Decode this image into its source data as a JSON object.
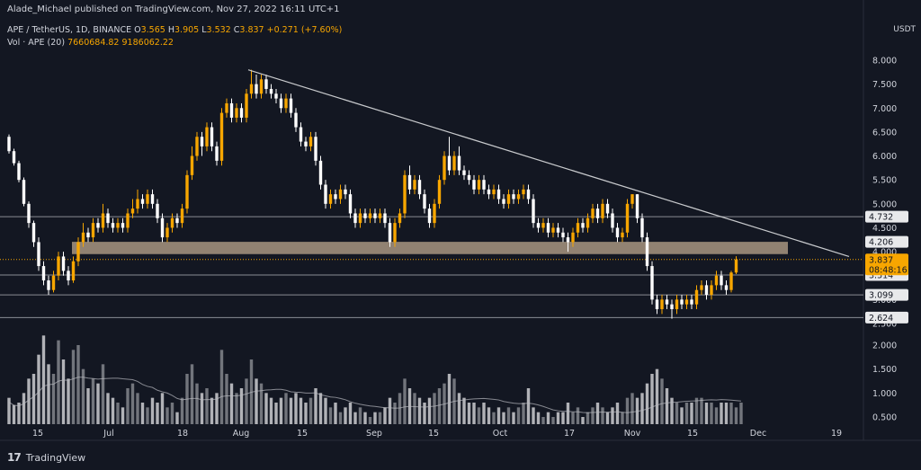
{
  "header": {
    "published": "Alade_Michael published on TradingView.com, Nov 27, 2022 16:11 UTC+1"
  },
  "legend": {
    "symbol": "APE / TetherUS, 1D, BINANCE",
    "open_label": "O",
    "open": "3.565",
    "high_label": "H",
    "high": "3.905",
    "low_label": "L",
    "low": "3.532",
    "close_label": "C",
    "close": "3.837",
    "change": "+0.271 (+7.60%)",
    "vol_label": "Vol · APE (20)",
    "vol_value": "7660684.82",
    "vol_ma": "9186062.22"
  },
  "currency": "USDT",
  "footer": {
    "brand": "TradingView"
  },
  "colors": {
    "background": "#131722",
    "up": "#f7a600",
    "down": "#ffffff",
    "zone": "#a89580",
    "trendline": "#c8cacd",
    "levels": "#8a8d94"
  },
  "chart_data": {
    "type": "candlestick",
    "price_axis": {
      "ticks": [
        "8.000",
        "7.500",
        "7.000",
        "6.500",
        "6.000",
        "5.500",
        "5.000",
        "4.500",
        "4.000",
        "3.500",
        "3.000",
        "2.500"
      ],
      "range": [
        2.5,
        8.0
      ]
    },
    "volume_axis": {
      "ticks": [
        "2.000",
        "1.500",
        "1.000",
        "0.500"
      ],
      "range": [
        0.3,
        2.4
      ]
    },
    "x_ticks": [
      "15",
      "Jul",
      "18",
      "Aug",
      "15",
      "Sep",
      "15",
      "Oct",
      "17",
      "Nov",
      "15",
      "Dec",
      "19"
    ],
    "levels": [
      {
        "label": "4.732",
        "value": 4.732
      },
      {
        "label": "3.514",
        "value": 3.514
      },
      {
        "label": "3.099",
        "value": 3.099
      },
      {
        "label": "2.624",
        "value": 2.624
      }
    ],
    "zone": {
      "label": "4.206",
      "low": 3.95,
      "high": 4.206
    },
    "last_price": {
      "label": "3.837",
      "value": 3.837,
      "countdown": "08:48:16"
    },
    "trendline": [
      {
        "x": "Aug 2",
        "y": 7.8
      },
      {
        "x": "Dec 16",
        "y": 3.9
      }
    ],
    "candles": [
      [
        6.4,
        6.1,
        6.45,
        6.05
      ],
      [
        6.1,
        5.85,
        6.15,
        5.8
      ],
      [
        5.85,
        5.5,
        5.9,
        5.45
      ],
      [
        5.5,
        5.0,
        5.55,
        4.95
      ],
      [
        5.0,
        4.6,
        5.05,
        4.5
      ],
      [
        4.6,
        4.2,
        4.65,
        4.1
      ],
      [
        4.2,
        3.7,
        4.3,
        3.6
      ],
      [
        3.7,
        3.4,
        3.8,
        3.3
      ],
      [
        3.4,
        3.2,
        3.5,
        3.1
      ],
      [
        3.2,
        3.5,
        3.6,
        3.15
      ],
      [
        3.5,
        3.9,
        4.0,
        3.4
      ],
      [
        3.9,
        3.6,
        4.0,
        3.5
      ],
      [
        3.6,
        3.4,
        3.7,
        3.3
      ],
      [
        3.4,
        3.8,
        3.9,
        3.35
      ],
      [
        3.8,
        4.2,
        4.3,
        3.7
      ],
      [
        4.2,
        4.4,
        4.6,
        4.1
      ],
      [
        4.4,
        4.3,
        4.5,
        4.2
      ],
      [
        4.3,
        4.6,
        4.7,
        4.2
      ],
      [
        4.6,
        4.5,
        4.7,
        4.4
      ],
      [
        4.5,
        4.8,
        5.0,
        4.4
      ],
      [
        4.8,
        4.6,
        4.9,
        4.5
      ],
      [
        4.6,
        4.5,
        4.7,
        4.4
      ],
      [
        4.5,
        4.6,
        4.7,
        4.4
      ],
      [
        4.6,
        4.5,
        4.7,
        4.4
      ],
      [
        4.5,
        4.8,
        4.9,
        4.4
      ],
      [
        4.8,
        4.9,
        5.1,
        4.7
      ],
      [
        4.9,
        5.1,
        5.3,
        4.8
      ],
      [
        5.1,
        5.0,
        5.2,
        4.9
      ],
      [
        5.0,
        5.2,
        5.3,
        4.9
      ],
      [
        5.2,
        5.0,
        5.3,
        4.9
      ],
      [
        5.0,
        4.7,
        5.1,
        4.6
      ],
      [
        4.7,
        4.3,
        4.8,
        4.2
      ],
      [
        4.3,
        4.5,
        4.6,
        4.2
      ],
      [
        4.5,
        4.7,
        4.8,
        4.4
      ],
      [
        4.7,
        4.6,
        4.8,
        4.5
      ],
      [
        4.6,
        4.9,
        5.0,
        4.5
      ],
      [
        4.9,
        5.6,
        5.7,
        4.8
      ],
      [
        5.6,
        6.0,
        6.2,
        5.5
      ],
      [
        6.0,
        6.4,
        6.5,
        5.9
      ],
      [
        6.4,
        6.2,
        6.5,
        6.0
      ],
      [
        6.2,
        6.6,
        6.7,
        6.1
      ],
      [
        6.6,
        6.2,
        6.7,
        6.1
      ],
      [
        6.2,
        5.9,
        6.3,
        5.8
      ],
      [
        5.9,
        6.9,
        7.0,
        5.8
      ],
      [
        6.9,
        7.1,
        7.2,
        6.8
      ],
      [
        7.1,
        6.8,
        7.2,
        6.7
      ],
      [
        6.8,
        7.0,
        7.1,
        6.7
      ],
      [
        7.0,
        6.8,
        7.1,
        6.7
      ],
      [
        6.8,
        7.3,
        7.4,
        6.7
      ],
      [
        7.3,
        7.5,
        7.8,
        7.2
      ],
      [
        7.5,
        7.3,
        7.7,
        7.2
      ],
      [
        7.3,
        7.6,
        7.7,
        7.2
      ],
      [
        7.6,
        7.4,
        7.7,
        7.3
      ],
      [
        7.4,
        7.3,
        7.5,
        7.2
      ],
      [
        7.3,
        7.2,
        7.4,
        7.1
      ],
      [
        7.2,
        7.0,
        7.3,
        6.9
      ],
      [
        7.0,
        7.2,
        7.3,
        6.9
      ],
      [
        7.2,
        6.9,
        7.3,
        6.8
      ],
      [
        6.9,
        6.6,
        7.0,
        6.5
      ],
      [
        6.6,
        6.3,
        6.7,
        6.2
      ],
      [
        6.3,
        6.2,
        6.4,
        6.1
      ],
      [
        6.2,
        6.4,
        6.5,
        6.1
      ],
      [
        6.4,
        5.9,
        6.5,
        5.8
      ],
      [
        5.9,
        5.4,
        6.0,
        5.3
      ],
      [
        5.4,
        5.0,
        5.5,
        4.9
      ],
      [
        5.0,
        5.2,
        5.3,
        4.9
      ],
      [
        5.2,
        5.1,
        5.3,
        5.0
      ],
      [
        5.1,
        5.3,
        5.4,
        5.0
      ],
      [
        5.3,
        5.2,
        5.4,
        5.1
      ],
      [
        5.2,
        4.8,
        5.3,
        4.7
      ],
      [
        4.8,
        4.6,
        4.9,
        4.5
      ],
      [
        4.6,
        4.8,
        4.9,
        4.5
      ],
      [
        4.8,
        4.7,
        4.9,
        4.6
      ],
      [
        4.7,
        4.8,
        4.9,
        4.6
      ],
      [
        4.8,
        4.7,
        4.9,
        4.6
      ],
      [
        4.7,
        4.8,
        4.9,
        4.6
      ],
      [
        4.8,
        4.6,
        4.9,
        4.5
      ],
      [
        4.6,
        4.2,
        4.7,
        4.1
      ],
      [
        4.2,
        4.6,
        4.7,
        4.1
      ],
      [
        4.6,
        4.8,
        4.9,
        4.5
      ],
      [
        4.8,
        5.6,
        5.7,
        4.7
      ],
      [
        5.6,
        5.3,
        5.8,
        5.2
      ],
      [
        5.3,
        5.5,
        5.6,
        5.2
      ],
      [
        5.5,
        5.2,
        5.6,
        5.1
      ],
      [
        5.2,
        4.9,
        5.3,
        4.8
      ],
      [
        4.9,
        4.6,
        5.0,
        4.5
      ],
      [
        4.6,
        5.0,
        5.1,
        4.5
      ],
      [
        5.0,
        5.5,
        5.6,
        4.9
      ],
      [
        5.5,
        6.0,
        6.1,
        5.4
      ],
      [
        6.0,
        5.7,
        6.4,
        5.6
      ],
      [
        5.7,
        6.0,
        6.1,
        5.6
      ],
      [
        6.0,
        5.7,
        6.2,
        5.6
      ],
      [
        5.7,
        5.6,
        5.8,
        5.5
      ],
      [
        5.6,
        5.5,
        5.7,
        5.4
      ],
      [
        5.5,
        5.3,
        5.6,
        5.2
      ],
      [
        5.3,
        5.5,
        5.6,
        5.2
      ],
      [
        5.5,
        5.3,
        5.6,
        5.2
      ],
      [
        5.3,
        5.2,
        5.4,
        5.1
      ],
      [
        5.2,
        5.3,
        5.4,
        5.1
      ],
      [
        5.3,
        5.1,
        5.4,
        5.0
      ],
      [
        5.1,
        5.0,
        5.2,
        4.9
      ],
      [
        5.0,
        5.2,
        5.3,
        4.9
      ],
      [
        5.2,
        5.1,
        5.3,
        5.0
      ],
      [
        5.1,
        5.2,
        5.3,
        5.0
      ],
      [
        5.2,
        5.3,
        5.4,
        5.1
      ],
      [
        5.3,
        5.1,
        5.4,
        5.0
      ],
      [
        5.1,
        4.6,
        5.2,
        4.5
      ],
      [
        4.6,
        4.5,
        4.7,
        4.4
      ],
      [
        4.5,
        4.6,
        4.7,
        4.4
      ],
      [
        4.6,
        4.4,
        4.7,
        4.3
      ],
      [
        4.4,
        4.5,
        4.6,
        4.3
      ],
      [
        4.5,
        4.4,
        4.6,
        4.3
      ],
      [
        4.4,
        4.3,
        4.5,
        4.2
      ],
      [
        4.3,
        4.2,
        4.4,
        4.0
      ],
      [
        4.2,
        4.4,
        4.5,
        4.1
      ],
      [
        4.4,
        4.6,
        4.7,
        4.3
      ],
      [
        4.6,
        4.5,
        4.7,
        4.4
      ],
      [
        4.5,
        4.7,
        4.8,
        4.4
      ],
      [
        4.7,
        4.9,
        5.0,
        4.6
      ],
      [
        4.9,
        4.7,
        5.0,
        4.6
      ],
      [
        4.7,
        5.0,
        5.1,
        4.6
      ],
      [
        5.0,
        4.8,
        5.1,
        4.7
      ],
      [
        4.8,
        4.5,
        4.9,
        4.4
      ],
      [
        4.5,
        4.3,
        4.6,
        4.2
      ],
      [
        4.3,
        4.4,
        4.5,
        4.2
      ],
      [
        4.4,
        5.0,
        5.1,
        4.3
      ],
      [
        5.0,
        5.2,
        5.2,
        4.9
      ],
      [
        5.2,
        4.7,
        5.2,
        4.6
      ],
      [
        4.7,
        4.3,
        4.8,
        4.2
      ],
      [
        4.3,
        3.7,
        4.4,
        3.6
      ],
      [
        3.7,
        3.0,
        3.8,
        2.9
      ],
      [
        3.0,
        2.8,
        3.1,
        2.7
      ],
      [
        2.8,
        3.0,
        3.1,
        2.7
      ],
      [
        3.0,
        2.9,
        3.1,
        2.8
      ],
      [
        2.9,
        2.8,
        3.0,
        2.6
      ],
      [
        2.8,
        3.0,
        3.1,
        2.7
      ],
      [
        3.0,
        2.9,
        3.1,
        2.8
      ],
      [
        2.9,
        3.0,
        3.1,
        2.8
      ],
      [
        3.0,
        2.9,
        3.1,
        2.8
      ],
      [
        2.9,
        3.2,
        3.3,
        2.8
      ],
      [
        3.2,
        3.3,
        3.4,
        3.1
      ],
      [
        3.3,
        3.1,
        3.4,
        3.0
      ],
      [
        3.1,
        3.3,
        3.4,
        3.0
      ],
      [
        3.3,
        3.5,
        3.6,
        3.2
      ],
      [
        3.5,
        3.3,
        3.6,
        3.2
      ],
      [
        3.3,
        3.2,
        3.4,
        3.1
      ],
      [
        3.2,
        3.565,
        3.6,
        3.15
      ],
      [
        3.565,
        3.837,
        3.905,
        3.532
      ]
    ],
    "volumes": [
      0.9,
      0.75,
      0.8,
      1.0,
      1.3,
      1.4,
      1.8,
      2.2,
      1.6,
      1.4,
      2.1,
      1.7,
      1.3,
      1.9,
      2.0,
      1.5,
      1.1,
      1.3,
      1.2,
      1.6,
      1.0,
      0.9,
      0.8,
      0.7,
      1.1,
      1.2,
      1.0,
      0.8,
      0.7,
      0.9,
      0.8,
      1.0,
      0.7,
      0.8,
      0.6,
      0.9,
      1.4,
      1.6,
      1.2,
      1.0,
      1.1,
      0.9,
      1.0,
      1.9,
      1.4,
      1.2,
      1.0,
      1.1,
      1.3,
      1.7,
      1.3,
      1.2,
      1.0,
      0.9,
      0.8,
      0.9,
      1.0,
      0.9,
      1.0,
      0.9,
      0.8,
      0.9,
      1.1,
      1.0,
      0.9,
      0.7,
      0.8,
      0.6,
      0.7,
      0.8,
      0.6,
      0.7,
      0.6,
      0.5,
      0.6,
      0.6,
      0.7,
      0.9,
      0.8,
      1.0,
      1.3,
      1.1,
      1.0,
      0.9,
      0.8,
      0.9,
      1.0,
      1.1,
      1.2,
      1.4,
      1.3,
      1.0,
      0.9,
      0.8,
      0.8,
      0.7,
      0.8,
      0.7,
      0.6,
      0.7,
      0.6,
      0.7,
      0.6,
      0.7,
      0.8,
      1.1,
      0.7,
      0.6,
      0.5,
      0.6,
      0.5,
      0.6,
      0.6,
      0.8,
      0.6,
      0.7,
      0.5,
      0.6,
      0.7,
      0.8,
      0.7,
      0.6,
      0.7,
      0.8,
      0.6,
      0.9,
      1.0,
      0.9,
      1.0,
      1.2,
      1.4,
      1.5,
      1.3,
      1.1,
      0.9,
      0.8,
      0.7,
      0.8,
      0.8,
      0.9,
      0.9,
      0.8,
      0.8,
      0.7,
      0.8,
      0.8,
      0.8,
      0.7,
      0.8
    ]
  }
}
